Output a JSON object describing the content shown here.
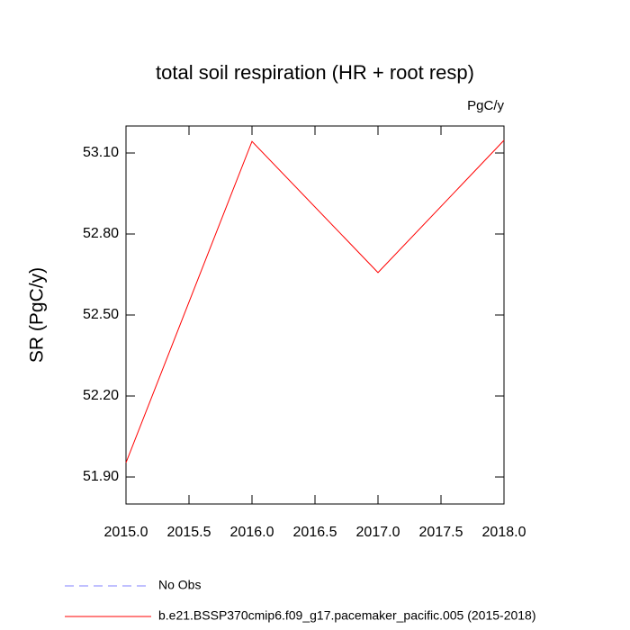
{
  "chart_data": {
    "type": "line",
    "title": "total soil respiration (HR + root resp)",
    "units": "PgC/y",
    "y_label": "SR  (PgC/y)",
    "x": [
      2015,
      2016,
      2017,
      2018
    ],
    "series": [
      {
        "name": "b.e21.BSSP370cmip6.f09_g17.pacemaker_pacific.005 (2015-2018)",
        "color": "#ff0000",
        "values": [
          51.953,
          53.143,
          52.657,
          53.147
        ]
      }
    ],
    "legend_extra": [
      {
        "name": "No Obs",
        "color": "#8080ff",
        "dashed": true
      }
    ],
    "xlim": [
      2015,
      2018
    ],
    "xticks": [
      {
        "value": 2015,
        "label": "2015.0"
      },
      {
        "value": 2015.5,
        "label": "2015.5"
      },
      {
        "value": 2016,
        "label": "2016.0"
      },
      {
        "value": 2016.5,
        "label": "2016.5"
      },
      {
        "value": 2017,
        "label": "2017.0"
      },
      {
        "value": 2017.5,
        "label": "2017.5"
      },
      {
        "value": 2018,
        "label": "2018.0"
      }
    ],
    "ylim": [
      51.8,
      53.2
    ],
    "yticks": [
      {
        "value": 51.9,
        "label": "51.90"
      },
      {
        "value": 52.2,
        "label": "52.20"
      },
      {
        "value": 52.5,
        "label": "52.50"
      },
      {
        "value": 52.8,
        "label": "52.80"
      },
      {
        "value": 53.1,
        "label": "53.10"
      }
    ]
  }
}
